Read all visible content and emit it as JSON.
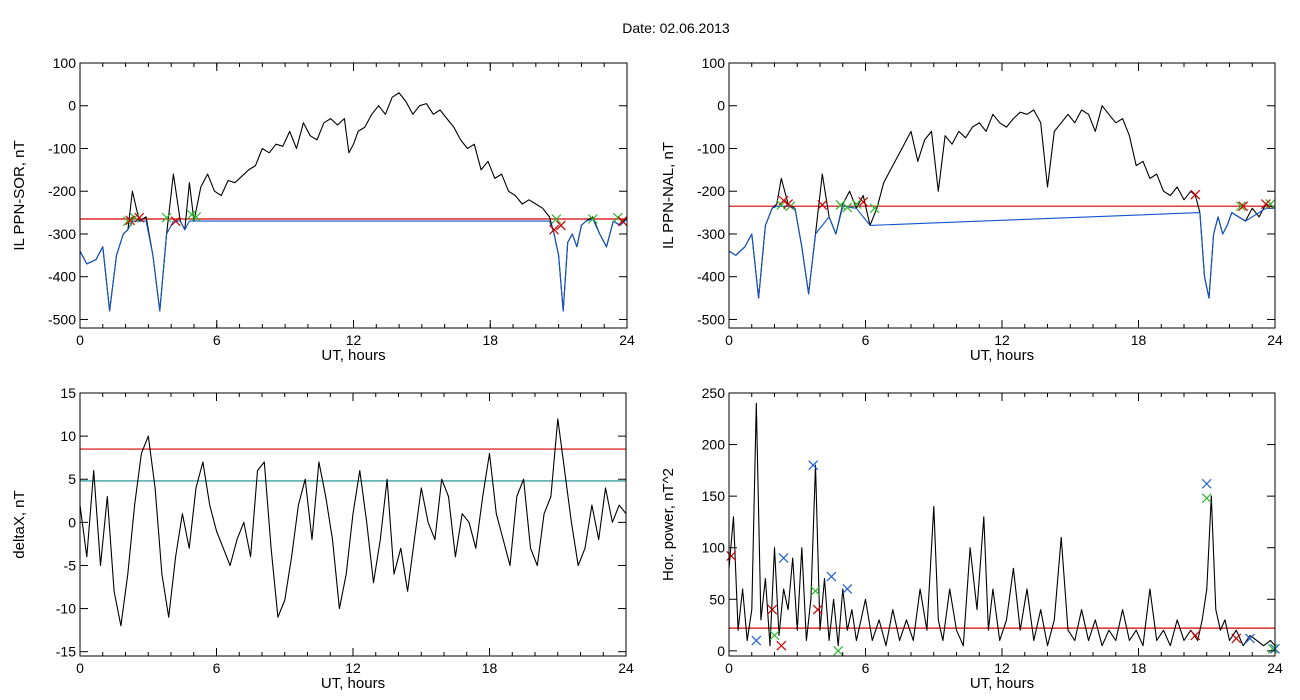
{
  "figure": {
    "title": "Date:  02.06.2013"
  },
  "chart_data": [
    {
      "type": "line",
      "xlabel": "UT, hours",
      "ylabel": "IL PPN-SOR, nT",
      "xlim": [
        0,
        24
      ],
      "ylim": [
        -520,
        100
      ],
      "xticks": [
        0,
        6,
        12,
        18,
        24
      ],
      "yticks": [
        100,
        0,
        -100,
        -200,
        -300,
        -400,
        -500
      ],
      "grid": false,
      "threshold": {
        "value": -265,
        "color": "#d40000"
      },
      "series": [
        {
          "color": "#000000",
          "x": [
            0,
            0.3,
            0.7,
            1,
            1.3,
            1.6,
            1.9,
            2.1,
            2.3,
            2.6,
            2.9,
            3.2,
            3.5,
            3.8,
            4.1,
            4.4,
            4.6,
            4.8,
            5,
            5.3,
            5.6,
            5.9,
            6.2,
            6.5,
            6.8,
            7.1,
            7.4,
            7.7,
            8,
            8.3,
            8.6,
            8.9,
            9.2,
            9.5,
            9.8,
            10.1,
            10.4,
            10.7,
            11,
            11.3,
            11.6,
            11.8,
            12,
            12.2,
            12.5,
            12.8,
            13.1,
            13.4,
            13.7,
            14,
            14.3,
            14.6,
            14.9,
            15.2,
            15.5,
            15.8,
            16.1,
            16.4,
            16.7,
            17,
            17.3,
            17.6,
            17.9,
            18.2,
            18.5,
            18.8,
            19.1,
            19.4,
            19.7,
            20,
            20.3,
            20.6,
            20.8,
            21,
            21.2,
            21.4,
            21.6,
            21.8,
            22,
            22.2,
            22.5,
            22.8,
            23.1,
            23.4,
            23.7,
            24
          ],
          "y": [
            -340,
            -370,
            -360,
            -330,
            -480,
            -350,
            -300,
            -290,
            -200,
            -270,
            -260,
            -350,
            -480,
            -300,
            -160,
            -270,
            -290,
            -180,
            -270,
            -190,
            -160,
            -200,
            -210,
            -175,
            -180,
            -165,
            -150,
            -140,
            -100,
            -110,
            -90,
            -95,
            -60,
            -100,
            -40,
            -70,
            -80,
            -40,
            -30,
            -45,
            -30,
            -110,
            -90,
            -60,
            -50,
            -20,
            0,
            -20,
            20,
            30,
            10,
            -20,
            0,
            5,
            -20,
            -10,
            -30,
            -50,
            -80,
            -100,
            -90,
            -150,
            -130,
            -170,
            -160,
            -200,
            -210,
            -230,
            -220,
            -230,
            -240,
            -260,
            -300,
            -350,
            -480,
            -320,
            -300,
            -330,
            -280,
            -270,
            -260,
            -300,
            -330,
            -270,
            -280,
            -260
          ]
        },
        {
          "color": "#1155cc",
          "x": [
            0,
            0.3,
            0.7,
            1,
            1.3,
            1.6,
            1.9,
            2.1,
            2.3,
            2.6,
            2.9,
            3.2,
            3.5,
            3.8,
            4.1,
            4.4,
            4.6,
            4.8,
            5,
            5.3,
            20.3,
            20.6,
            20.8,
            21,
            21.2,
            21.4,
            21.6,
            21.8,
            22,
            22.2,
            22.5,
            22.8,
            23.1,
            23.4,
            23.7,
            24
          ],
          "y": [
            -340,
            -370,
            -360,
            -330,
            -480,
            -350,
            -300,
            -290,
            -270,
            -270,
            -270,
            -350,
            -480,
            -300,
            -270,
            -270,
            -290,
            -270,
            -270,
            -270,
            -270,
            -270,
            -300,
            -350,
            -480,
            -320,
            -300,
            -330,
            -280,
            -270,
            -265,
            -300,
            -330,
            -270,
            -280,
            -265
          ]
        }
      ],
      "markers": [
        {
          "color": "#2eb82e",
          "x": [
            2.1,
            2.4,
            3.8,
            4.9,
            5.1,
            20.9,
            22.5,
            23.6
          ],
          "y": [
            -270,
            -262,
            -262,
            -255,
            -260,
            -265,
            -265,
            -262
          ]
        },
        {
          "color": "#cc0000",
          "x": [
            2.2,
            2.6,
            4.2,
            20.8,
            21.1,
            23.8
          ],
          "y": [
            -268,
            -262,
            -270,
            -290,
            -280,
            -270
          ]
        }
      ]
    },
    {
      "type": "line",
      "xlabel": "UT, hours",
      "ylabel": "IL PPN-NAL, nT",
      "xlim": [
        0,
        24
      ],
      "ylim": [
        -520,
        100
      ],
      "xticks": [
        0,
        6,
        12,
        18,
        24
      ],
      "yticks": [
        100,
        0,
        -100,
        -200,
        -300,
        -400,
        -500
      ],
      "grid": false,
      "threshold": {
        "value": -235,
        "color": "#d40000"
      },
      "series": [
        {
          "color": "#000000",
          "x": [
            0,
            0.3,
            0.7,
            1,
            1.3,
            1.6,
            1.9,
            2.1,
            2.3,
            2.6,
            2.9,
            3.2,
            3.5,
            3.8,
            4.1,
            4.4,
            4.7,
            5,
            5.3,
            5.6,
            5.9,
            6.2,
            6.5,
            6.8,
            7.1,
            7.4,
            7.7,
            8,
            8.3,
            8.6,
            8.9,
            9.2,
            9.5,
            9.8,
            10.1,
            10.4,
            10.7,
            11,
            11.3,
            11.6,
            11.9,
            12.2,
            12.5,
            12.8,
            13.1,
            13.4,
            13.7,
            14,
            14.3,
            14.6,
            14.9,
            15.2,
            15.5,
            15.8,
            16.1,
            16.4,
            16.7,
            17,
            17.3,
            17.6,
            17.9,
            18.2,
            18.5,
            18.8,
            19.1,
            19.4,
            19.7,
            20,
            20.3,
            20.5,
            20.7,
            20.9,
            21.1,
            21.3,
            21.5,
            21.7,
            21.9,
            22.1,
            22.4,
            22.7,
            23,
            23.3,
            23.6,
            24
          ],
          "y": [
            -340,
            -350,
            -330,
            -300,
            -450,
            -280,
            -240,
            -230,
            -170,
            -230,
            -240,
            -330,
            -440,
            -300,
            -160,
            -260,
            -300,
            -230,
            -200,
            -240,
            -210,
            -280,
            -240,
            -180,
            -150,
            -120,
            -90,
            -60,
            -130,
            -80,
            -60,
            -200,
            -70,
            -90,
            -60,
            -75,
            -50,
            -40,
            -60,
            -20,
            -40,
            -50,
            -30,
            -15,
            -20,
            -10,
            -40,
            -190,
            -60,
            -40,
            -20,
            -40,
            -10,
            -20,
            -60,
            0,
            -20,
            -40,
            -30,
            -70,
            -140,
            -130,
            -170,
            -160,
            -200,
            -210,
            -190,
            -220,
            -200,
            -210,
            -250,
            -400,
            -450,
            -300,
            -260,
            -300,
            -280,
            -250,
            -260,
            -270,
            -240,
            -260,
            -230,
            -240
          ]
        },
        {
          "color": "#1155cc",
          "x": [
            0,
            0.3,
            0.7,
            1,
            1.3,
            1.6,
            1.9,
            2.1,
            2.6,
            2.9,
            3.2,
            3.5,
            3.8,
            4.4,
            4.7,
            5,
            5.6,
            6.2,
            20.7,
            20.9,
            21.1,
            21.3,
            21.5,
            21.7,
            21.9,
            22.1,
            22.7,
            23.6,
            24
          ],
          "y": [
            -340,
            -350,
            -330,
            -300,
            -450,
            -280,
            -240,
            -235,
            -235,
            -240,
            -330,
            -440,
            -300,
            -260,
            -300,
            -235,
            -240,
            -280,
            -250,
            -400,
            -450,
            -300,
            -260,
            -300,
            -280,
            -250,
            -270,
            -240,
            -240
          ]
        }
      ],
      "markers": [
        {
          "color": "#2eb82e",
          "x": [
            2.3,
            2.7,
            4.9,
            5.2,
            5.6,
            6.4,
            22.5,
            23.8
          ],
          "y": [
            -232,
            -235,
            -232,
            -238,
            -230,
            -240,
            -235,
            -230
          ]
        },
        {
          "color": "#cc0000",
          "x": [
            2.4,
            2.6,
            4.1,
            5.9,
            20.5,
            22.6,
            23.6
          ],
          "y": [
            -222,
            -230,
            -232,
            -225,
            -208,
            -235,
            -230
          ]
        }
      ]
    },
    {
      "type": "line",
      "xlabel": "UT, hours",
      "ylabel": "deltaX, nT",
      "xlim": [
        0,
        24
      ],
      "ylim": [
        -15.5,
        15
      ],
      "xticks": [
        0,
        6,
        12,
        18,
        24
      ],
      "yticks": [
        15,
        10,
        5,
        0,
        -5,
        -10,
        -15
      ],
      "grid": false,
      "hlines": [
        {
          "value": 8.5,
          "color": "#d40000"
        },
        {
          "value": 4.8,
          "color": "#138b8b"
        }
      ],
      "series": [
        {
          "color": "#000000",
          "x": [
            0,
            0.3,
            0.6,
            0.9,
            1.2,
            1.5,
            1.8,
            2.1,
            2.4,
            2.7,
            3,
            3.3,
            3.6,
            3.9,
            4.2,
            4.5,
            4.8,
            5.1,
            5.4,
            5.7,
            6,
            6.3,
            6.6,
            6.9,
            7.2,
            7.5,
            7.8,
            8.1,
            8.4,
            8.7,
            9,
            9.3,
            9.6,
            9.9,
            10.2,
            10.5,
            10.8,
            11.1,
            11.4,
            11.7,
            12,
            12.3,
            12.6,
            12.9,
            13.2,
            13.5,
            13.8,
            14.1,
            14.4,
            14.7,
            15,
            15.3,
            15.6,
            15.9,
            16.2,
            16.5,
            16.8,
            17.1,
            17.4,
            17.7,
            18,
            18.3,
            18.6,
            18.9,
            19.2,
            19.5,
            19.8,
            20.1,
            20.4,
            20.7,
            21,
            21.3,
            21.6,
            21.9,
            22.2,
            22.5,
            22.8,
            23.1,
            23.4,
            23.7,
            24
          ],
          "y": [
            2,
            -4,
            6,
            -5,
            3,
            -8,
            -12,
            -6,
            2,
            8,
            10,
            4,
            -6,
            -11,
            -4,
            1,
            -3,
            4,
            7,
            2,
            -1,
            -3,
            -5,
            -2,
            0,
            -4,
            6,
            7,
            -3,
            -11,
            -9,
            -4,
            2,
            5,
            -2,
            7,
            3,
            -2,
            -10,
            -6,
            1,
            6,
            0,
            -7,
            -2,
            5,
            -6,
            -3,
            -8,
            -2,
            4,
            0,
            -2,
            5,
            3,
            -4,
            1,
            0,
            -3,
            3,
            8,
            1,
            -2,
            -5,
            3,
            5,
            -3,
            -5,
            1,
            3,
            12,
            6,
            0,
            -5,
            -3,
            2,
            -2,
            4,
            0,
            2,
            1
          ]
        }
      ]
    },
    {
      "type": "line",
      "xlabel": "UT, hours",
      "ylabel": "Hor. power, nT^2",
      "xlim": [
        0,
        24
      ],
      "ylim": [
        -5,
        250
      ],
      "xticks": [
        0,
        6,
        12,
        18,
        24
      ],
      "yticks": [
        250,
        200,
        150,
        100,
        50,
        0
      ],
      "grid": false,
      "threshold": {
        "value": 22,
        "color": "#d40000"
      },
      "series": [
        {
          "color": "#000000",
          "x": [
            0,
            0.2,
            0.4,
            0.6,
            0.8,
            1,
            1.2,
            1.4,
            1.6,
            1.8,
            2,
            2.2,
            2.4,
            2.6,
            2.8,
            3,
            3.2,
            3.4,
            3.6,
            3.8,
            4,
            4.2,
            4.4,
            4.6,
            4.8,
            5,
            5.2,
            5.4,
            5.6,
            5.8,
            6,
            6.3,
            6.6,
            6.9,
            7.2,
            7.5,
            7.8,
            8.1,
            8.4,
            8.7,
            9,
            9.2,
            9.4,
            9.7,
            10,
            10.3,
            10.6,
            10.9,
            11.2,
            11.4,
            11.6,
            11.9,
            12.2,
            12.5,
            12.8,
            13.1,
            13.4,
            13.7,
            14,
            14.3,
            14.6,
            14.9,
            15.2,
            15.5,
            15.8,
            16.1,
            16.4,
            16.7,
            17,
            17.3,
            17.6,
            17.9,
            18.2,
            18.5,
            18.8,
            19.1,
            19.4,
            19.7,
            20,
            20.3,
            20.6,
            20.8,
            21,
            21.2,
            21.4,
            21.6,
            21.8,
            22,
            22.3,
            22.6,
            22.9,
            23.2,
            23.5,
            23.8,
            24
          ],
          "y": [
            80,
            130,
            20,
            60,
            10,
            40,
            240,
            30,
            70,
            5,
            100,
            15,
            60,
            40,
            90,
            20,
            100,
            10,
            50,
            180,
            20,
            70,
            10,
            50,
            5,
            60,
            20,
            40,
            10,
            30,
            50,
            10,
            30,
            5,
            40,
            10,
            30,
            10,
            60,
            20,
            140,
            30,
            10,
            60,
            20,
            5,
            100,
            40,
            130,
            20,
            60,
            10,
            30,
            80,
            20,
            60,
            10,
            40,
            5,
            30,
            110,
            20,
            10,
            40,
            10,
            30,
            5,
            20,
            10,
            40,
            10,
            20,
            5,
            60,
            10,
            20,
            5,
            30,
            10,
            20,
            10,
            30,
            60,
            150,
            40,
            20,
            30,
            10,
            20,
            5,
            15,
            10,
            5,
            10,
            5
          ]
        }
      ],
      "markers": [
        {
          "color": "#1f5fd6",
          "x": [
            1.2,
            2.4,
            3.7,
            4.5,
            5.2,
            21,
            22.9,
            24
          ],
          "y": [
            10,
            90,
            180,
            72,
            60,
            162,
            12,
            2
          ]
        },
        {
          "color": "#2eb82e",
          "x": [
            2.0,
            3.8,
            4.8,
            21,
            23.9
          ],
          "y": [
            15,
            58,
            0,
            148,
            2
          ]
        },
        {
          "color": "#cc0000",
          "x": [
            0.1,
            1.9,
            2.3,
            3.9,
            20.5,
            22.3
          ],
          "y": [
            92,
            40,
            5,
            40,
            15,
            12
          ]
        }
      ]
    }
  ]
}
